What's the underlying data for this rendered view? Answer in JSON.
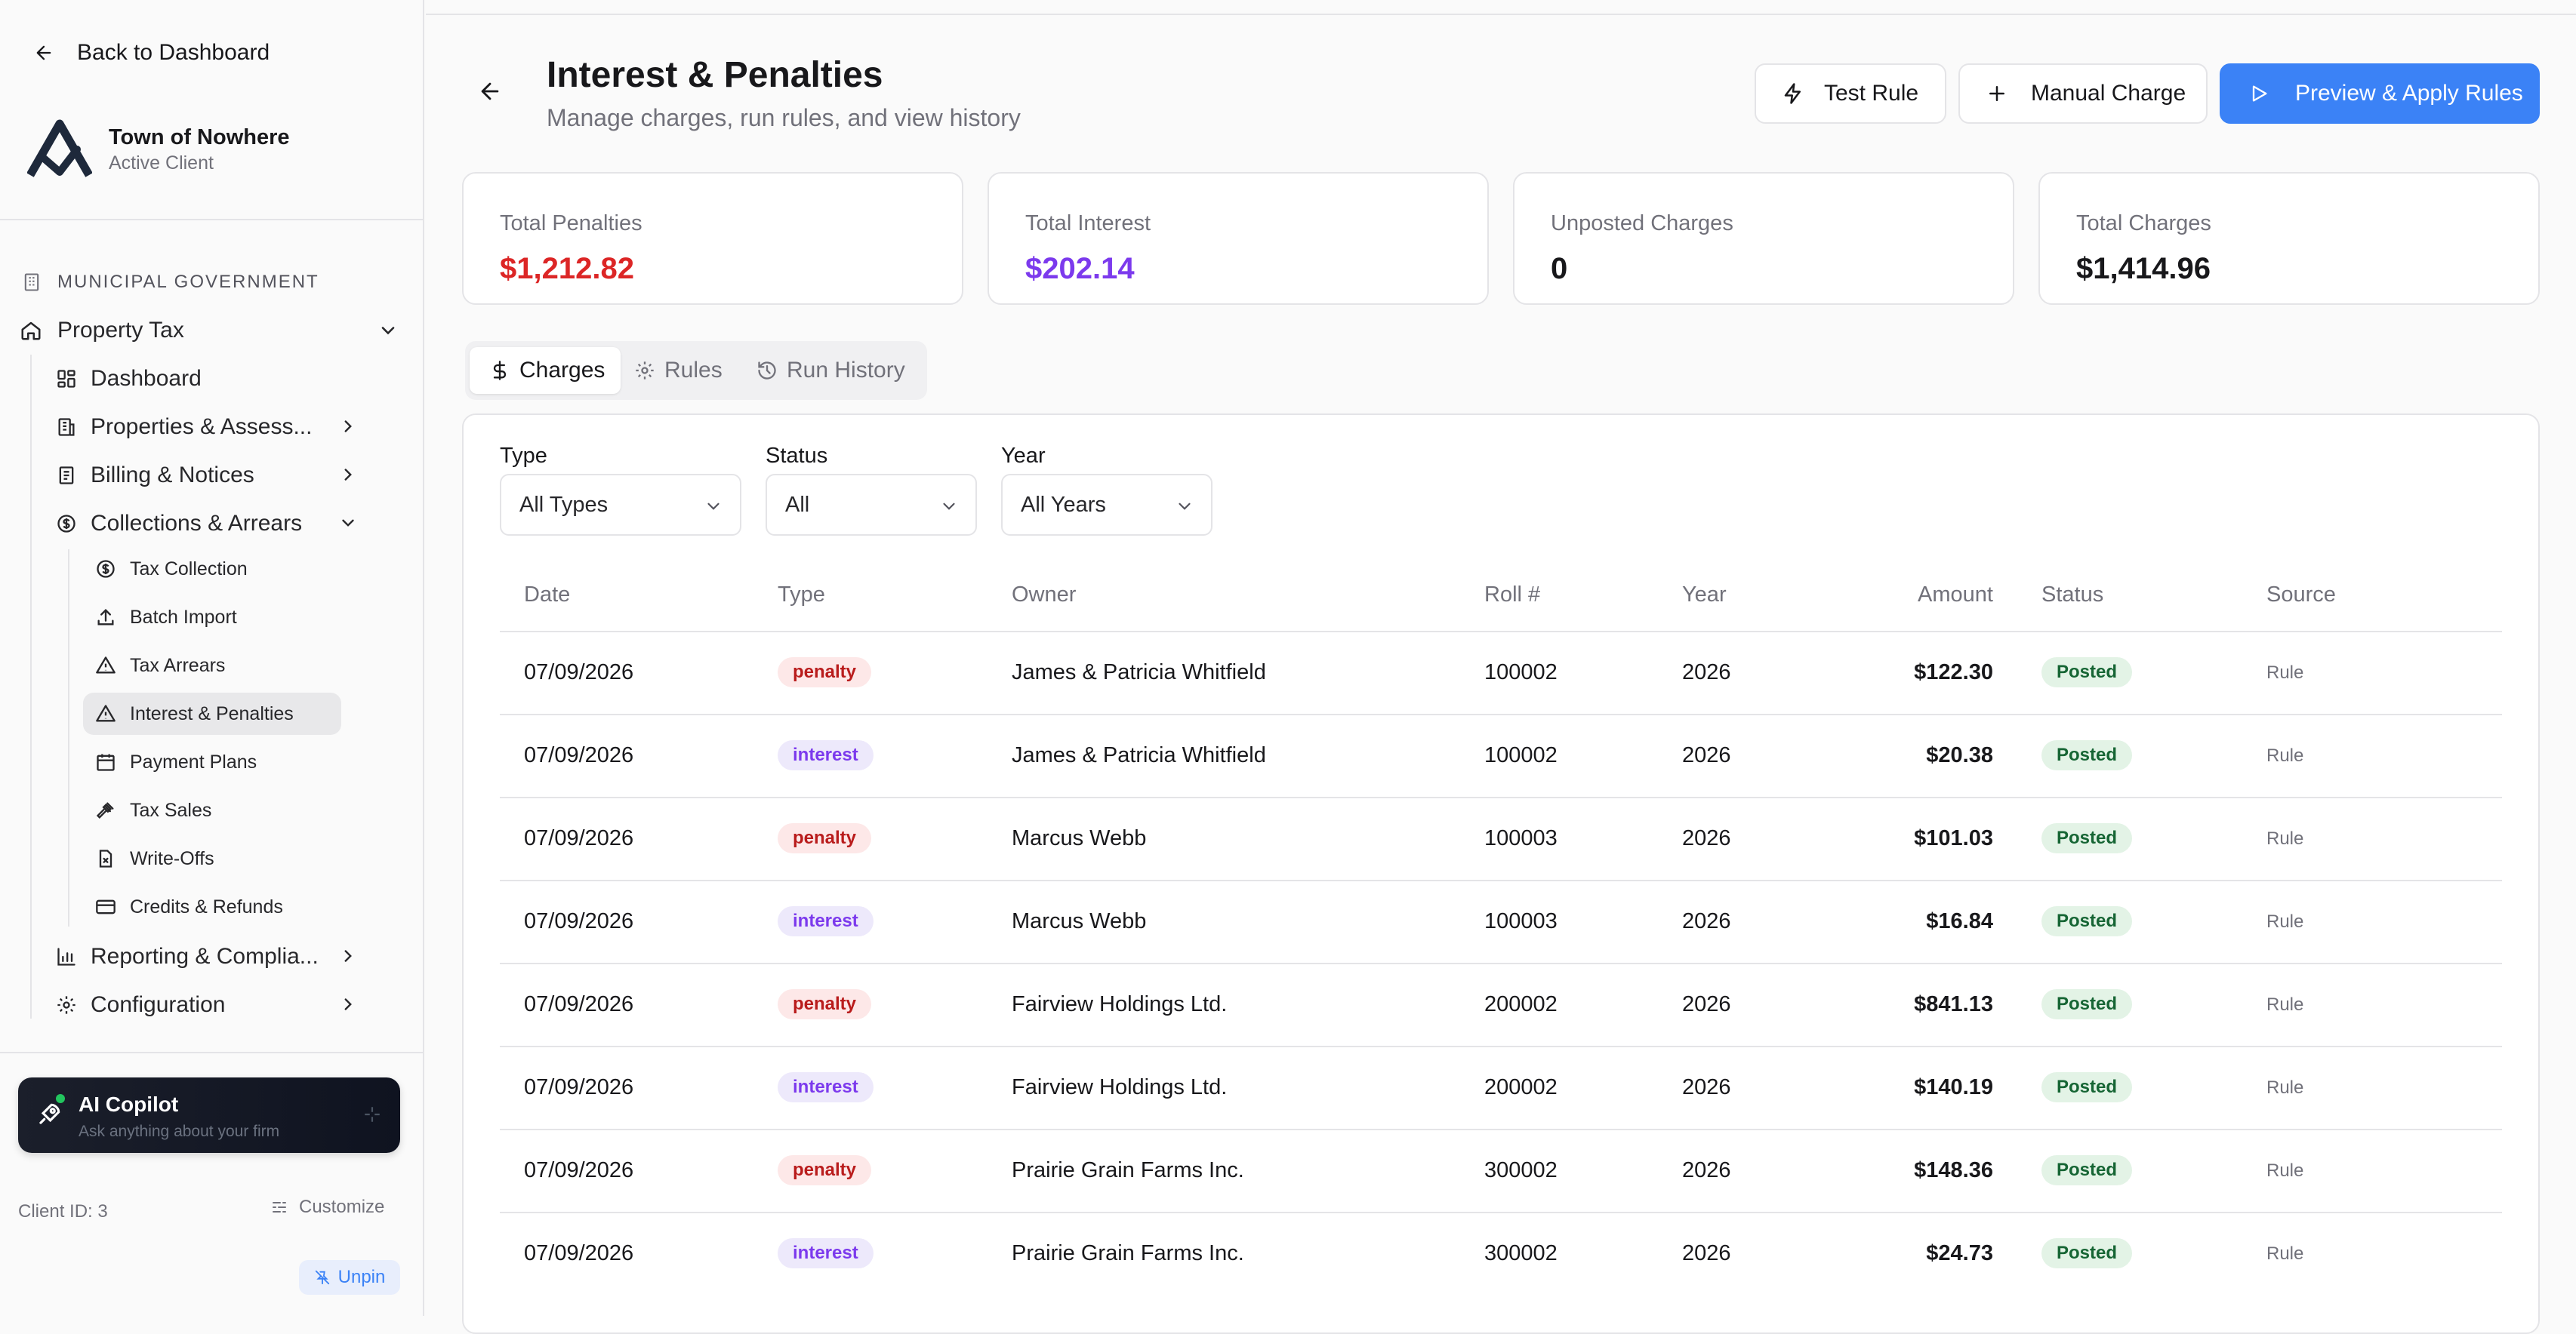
{
  "sidebar": {
    "back_label": "Back to Dashboard",
    "brand_name": "Town of Nowhere",
    "brand_sub": "Active Client",
    "section_label": "MUNICIPAL GOVERNMENT",
    "property_tax": "Property Tax",
    "dashboard": "Dashboard",
    "properties": "Properties & Assess...",
    "billing": "Billing & Notices",
    "collections": "Collections & Arrears",
    "sub_items": [
      "Tax Collection",
      "Batch Import",
      "Tax Arrears",
      "Interest & Penalties",
      "Payment Plans",
      "Tax Sales",
      "Write-Offs",
      "Credits & Refunds"
    ],
    "reporting": "Reporting & Complia...",
    "configuration": "Configuration",
    "copilot_title": "AI Copilot",
    "copilot_sub": "Ask anything about your firm",
    "client_id": "Client ID: 3",
    "customize": "Customize",
    "unpin": "Unpin"
  },
  "header": {
    "title": "Interest & Penalties",
    "subtitle": "Manage charges, run rules, and view history",
    "test_rule": "Test Rule",
    "manual_charge": "Manual Charge",
    "preview_apply": "Preview & Apply Rules"
  },
  "stats": [
    {
      "label": "Total Penalties",
      "value": "$1,212.82"
    },
    {
      "label": "Total Interest",
      "value": "$202.14"
    },
    {
      "label": "Unposted Charges",
      "value": "0"
    },
    {
      "label": "Total Charges",
      "value": "$1,414.96"
    }
  ],
  "colors": {
    "penalty": "#dc2626",
    "interest": "#7c3aed",
    "accent": "#3b82f6"
  },
  "tabs": [
    "Charges",
    "Rules",
    "Run History"
  ],
  "filters": {
    "type_label": "Type",
    "type_value": "All Types",
    "status_label": "Status",
    "status_value": "All",
    "year_label": "Year",
    "year_value": "All Years"
  },
  "table": {
    "headers": [
      "Date",
      "Type",
      "Owner",
      "Roll #",
      "Year",
      "Amount",
      "Status",
      "Source"
    ],
    "rows": [
      {
        "date": "07/09/2026",
        "type": "penalty",
        "owner": "James & Patricia Whitfield",
        "roll": "100002",
        "year": "2026",
        "amount": "$122.30",
        "status": "Posted",
        "source": "Rule"
      },
      {
        "date": "07/09/2026",
        "type": "interest",
        "owner": "James & Patricia Whitfield",
        "roll": "100002",
        "year": "2026",
        "amount": "$20.38",
        "status": "Posted",
        "source": "Rule"
      },
      {
        "date": "07/09/2026",
        "type": "penalty",
        "owner": "Marcus Webb",
        "roll": "100003",
        "year": "2026",
        "amount": "$101.03",
        "status": "Posted",
        "source": "Rule"
      },
      {
        "date": "07/09/2026",
        "type": "interest",
        "owner": "Marcus Webb",
        "roll": "100003",
        "year": "2026",
        "amount": "$16.84",
        "status": "Posted",
        "source": "Rule"
      },
      {
        "date": "07/09/2026",
        "type": "penalty",
        "owner": "Fairview Holdings Ltd.",
        "roll": "200002",
        "year": "2026",
        "amount": "$841.13",
        "status": "Posted",
        "source": "Rule"
      },
      {
        "date": "07/09/2026",
        "type": "interest",
        "owner": "Fairview Holdings Ltd.",
        "roll": "200002",
        "year": "2026",
        "amount": "$140.19",
        "status": "Posted",
        "source": "Rule"
      },
      {
        "date": "07/09/2026",
        "type": "penalty",
        "owner": "Prairie Grain Farms Inc.",
        "roll": "300002",
        "year": "2026",
        "amount": "$148.36",
        "status": "Posted",
        "source": "Rule"
      },
      {
        "date": "07/09/2026",
        "type": "interest",
        "owner": "Prairie Grain Farms Inc.",
        "roll": "300002",
        "year": "2026",
        "amount": "$24.73",
        "status": "Posted",
        "source": "Rule"
      }
    ]
  }
}
